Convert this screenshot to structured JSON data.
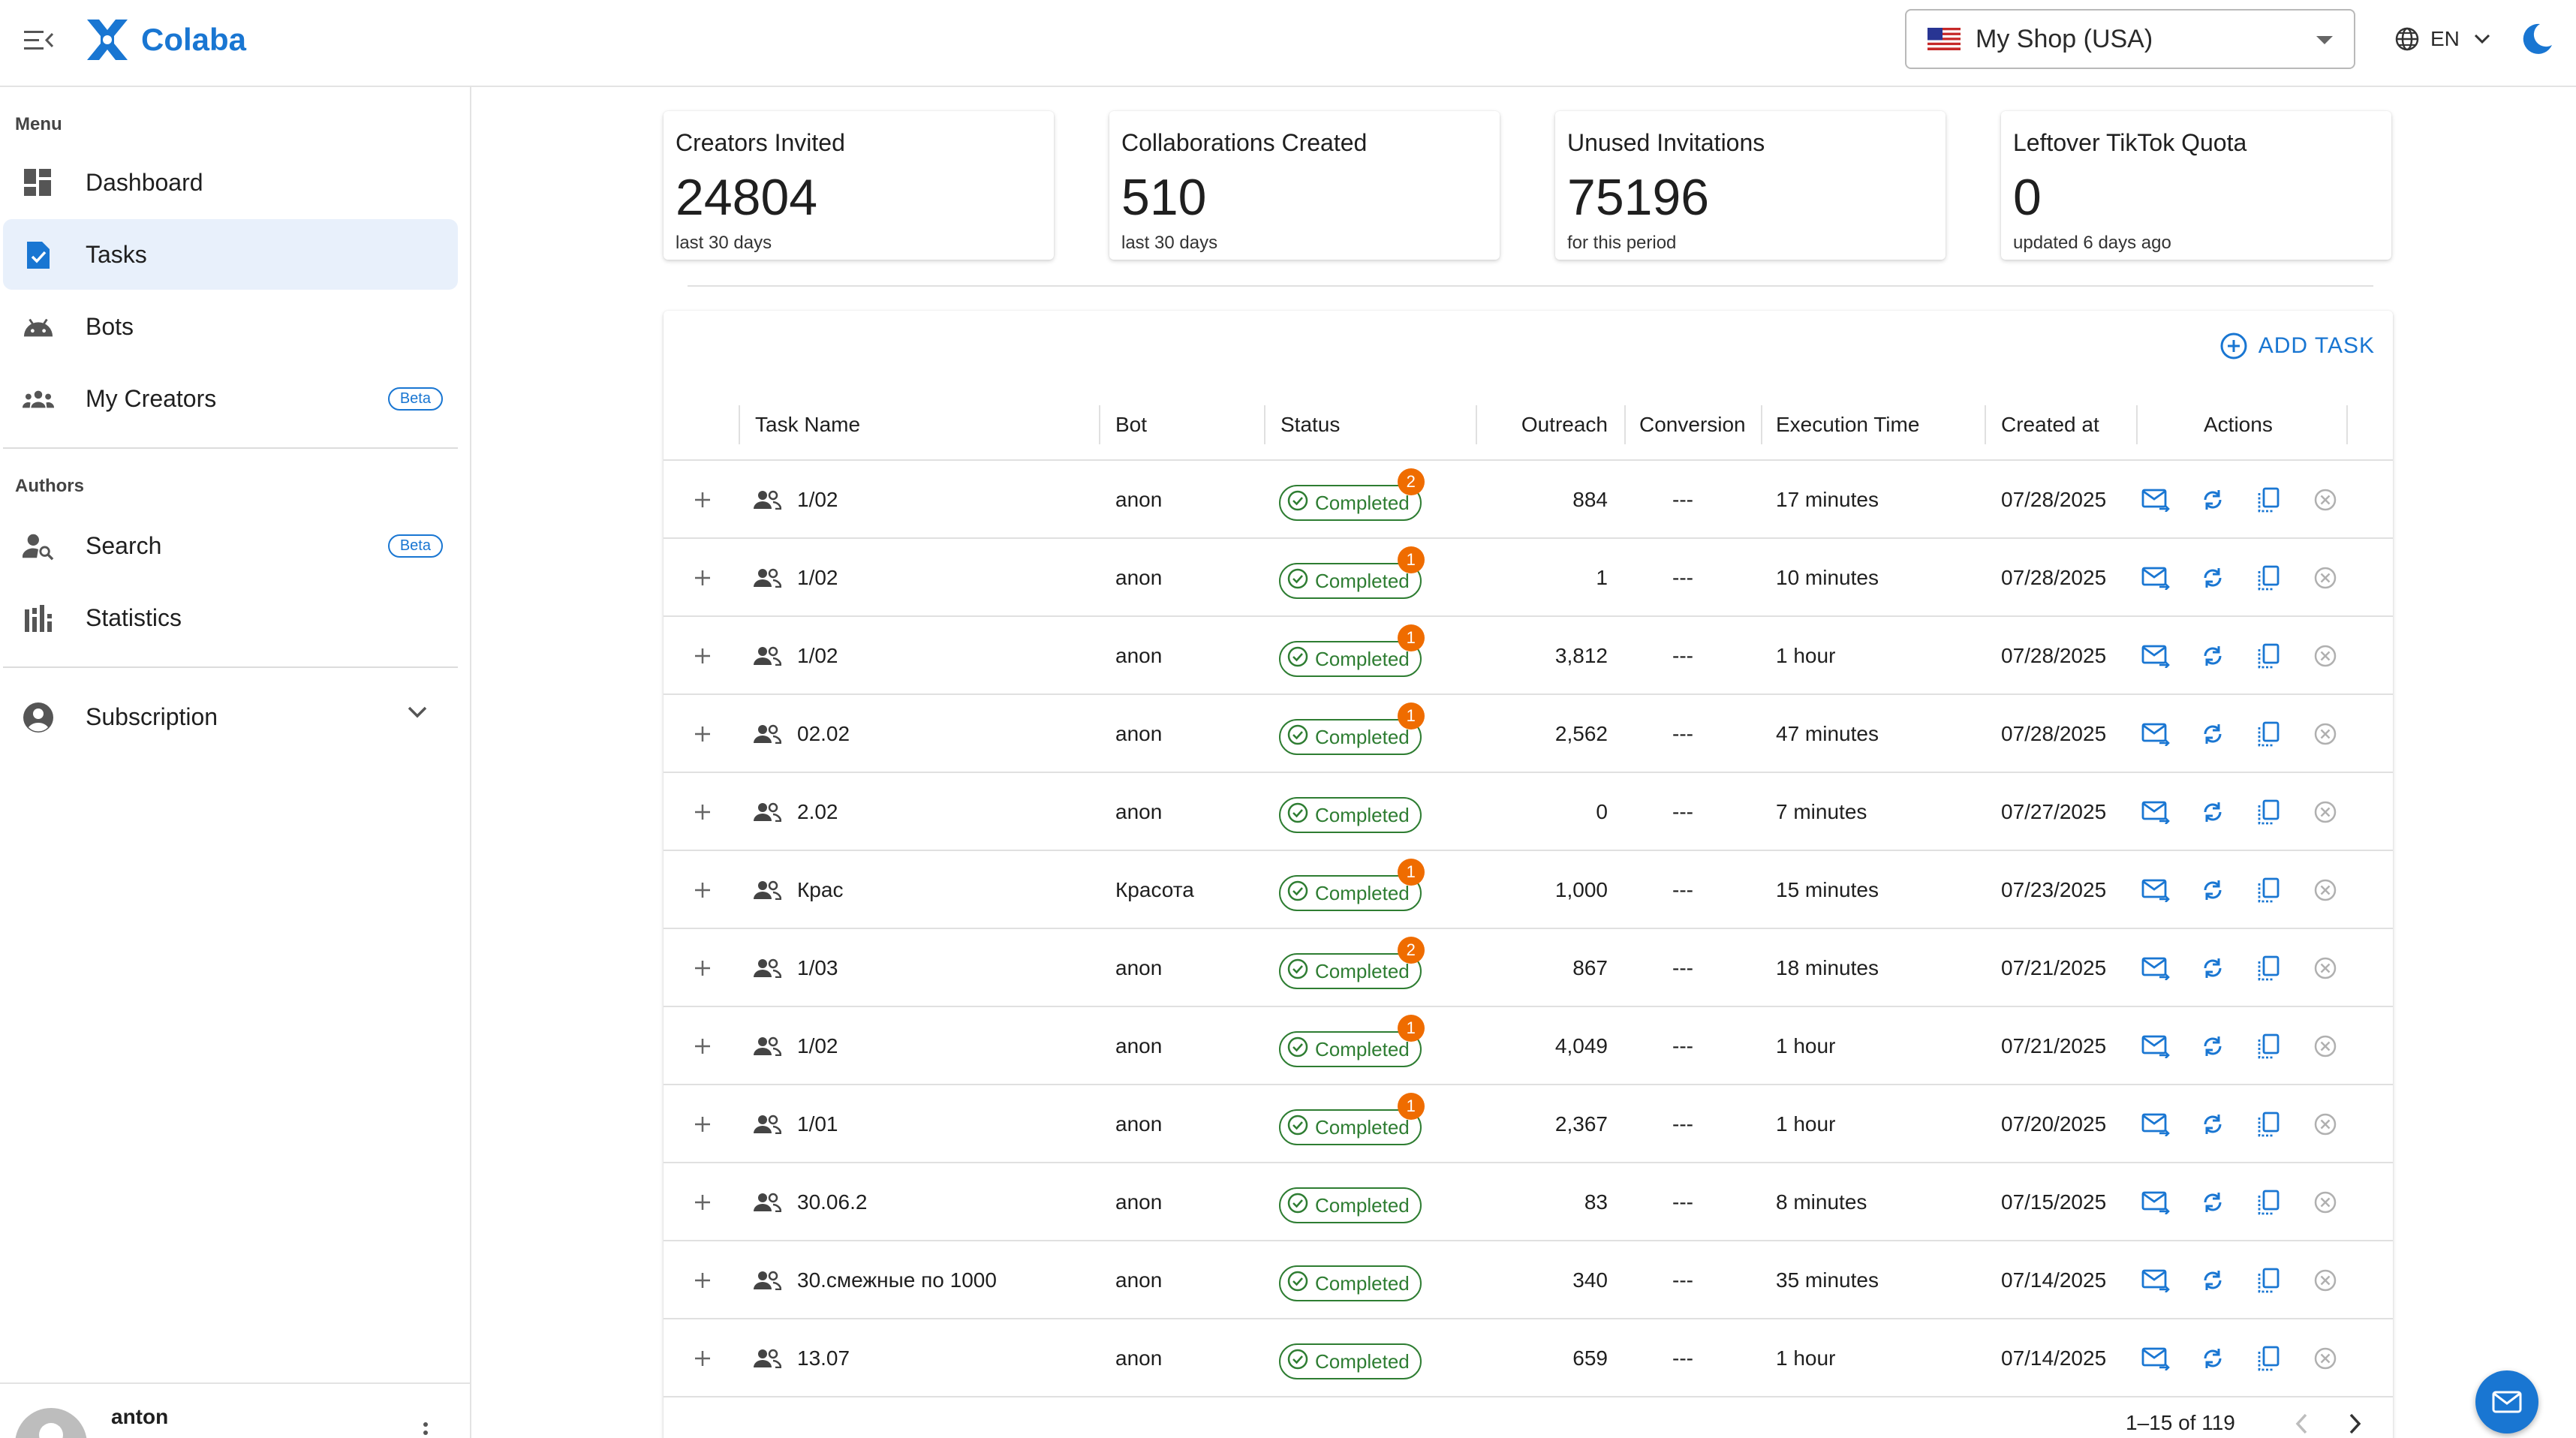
{
  "app": {
    "name": "Colaba",
    "brand_color": "#1976d2"
  },
  "header": {
    "shop": "My Shop (USA)",
    "shop_flag": "us-flag",
    "language": "EN"
  },
  "sidebar": {
    "menu_label": "Menu",
    "items": [
      {
        "label": "Dashboard",
        "icon": "dashboard-icon"
      },
      {
        "label": "Tasks",
        "icon": "task-icon",
        "active": true
      },
      {
        "label": "Bots",
        "icon": "android-icon"
      },
      {
        "label": "My Creators",
        "icon": "groups-icon",
        "badge": "Beta"
      }
    ],
    "authors_label": "Authors",
    "author_items": [
      {
        "label": "Search",
        "icon": "person-search-icon",
        "badge": "Beta"
      },
      {
        "label": "Statistics",
        "icon": "bar-chart-icon"
      }
    ],
    "subscription_label": "Subscription",
    "user": {
      "name": "anton"
    }
  },
  "stats": [
    {
      "title": "Creators Invited",
      "value": "24804",
      "sub": "last 30 days"
    },
    {
      "title": "Collaborations Created",
      "value": "510",
      "sub": "last 30 days"
    },
    {
      "title": "Unused Invitations",
      "value": "75196",
      "sub": "for this period"
    },
    {
      "title": "Leftover TikTok Quota",
      "value": "0",
      "sub": "updated 6 days ago"
    }
  ],
  "table": {
    "add_task_label": "ADD TASK",
    "columns": [
      "Task Name",
      "Bot",
      "Status",
      "Outreach",
      "Conversion",
      "Execution Time",
      "Created at",
      "Actions"
    ],
    "rows": [
      {
        "name": "1/02",
        "bot": "anon",
        "status": "Completed",
        "badge": "2",
        "outreach": "884",
        "conversion": "---",
        "exec": "17 minutes",
        "created": "07/28/2025"
      },
      {
        "name": "1/02",
        "bot": "anon",
        "status": "Completed",
        "badge": "1",
        "outreach": "1",
        "conversion": "---",
        "exec": "10 minutes",
        "created": "07/28/2025"
      },
      {
        "name": "1/02",
        "bot": "anon",
        "status": "Completed",
        "badge": "1",
        "outreach": "3,812",
        "conversion": "---",
        "exec": "1 hour",
        "created": "07/28/2025"
      },
      {
        "name": "02.02",
        "bot": "anon",
        "status": "Completed",
        "badge": "1",
        "outreach": "2,562",
        "conversion": "---",
        "exec": "47 minutes",
        "created": "07/28/2025"
      },
      {
        "name": "2.02",
        "bot": "anon",
        "status": "Completed",
        "badge": "",
        "outreach": "0",
        "conversion": "---",
        "exec": "7 minutes",
        "created": "07/27/2025"
      },
      {
        "name": "Крас",
        "bot": "Красота",
        "status": "Completed",
        "badge": "1",
        "outreach": "1,000",
        "conversion": "---",
        "exec": "15 minutes",
        "created": "07/23/2025"
      },
      {
        "name": "1/03",
        "bot": "anon",
        "status": "Completed",
        "badge": "2",
        "outreach": "867",
        "conversion": "---",
        "exec": "18 minutes",
        "created": "07/21/2025"
      },
      {
        "name": "1/02",
        "bot": "anon",
        "status": "Completed",
        "badge": "1",
        "outreach": "4,049",
        "conversion": "---",
        "exec": "1 hour",
        "created": "07/21/2025"
      },
      {
        "name": "1/01",
        "bot": "anon",
        "status": "Completed",
        "badge": "1",
        "outreach": "2,367",
        "conversion": "---",
        "exec": "1 hour",
        "created": "07/20/2025"
      },
      {
        "name": "30.06.2",
        "bot": "anon",
        "status": "Completed",
        "badge": "",
        "outreach": "83",
        "conversion": "---",
        "exec": "8 minutes",
        "created": "07/15/2025"
      },
      {
        "name": "30.смежные по 1000",
        "bot": "anon",
        "status": "Completed",
        "badge": "",
        "outreach": "340",
        "conversion": "---",
        "exec": "35 minutes",
        "created": "07/14/2025"
      },
      {
        "name": "13.07",
        "bot": "anon",
        "status": "Completed",
        "badge": "",
        "outreach": "659",
        "conversion": "---",
        "exec": "1 hour",
        "created": "07/14/2025"
      }
    ],
    "pagination": "1–15 of 119"
  },
  "colors": {
    "status_green": "#2e7d32",
    "badge_orange": "#ef6c00",
    "divider": "#e0e0e0"
  }
}
